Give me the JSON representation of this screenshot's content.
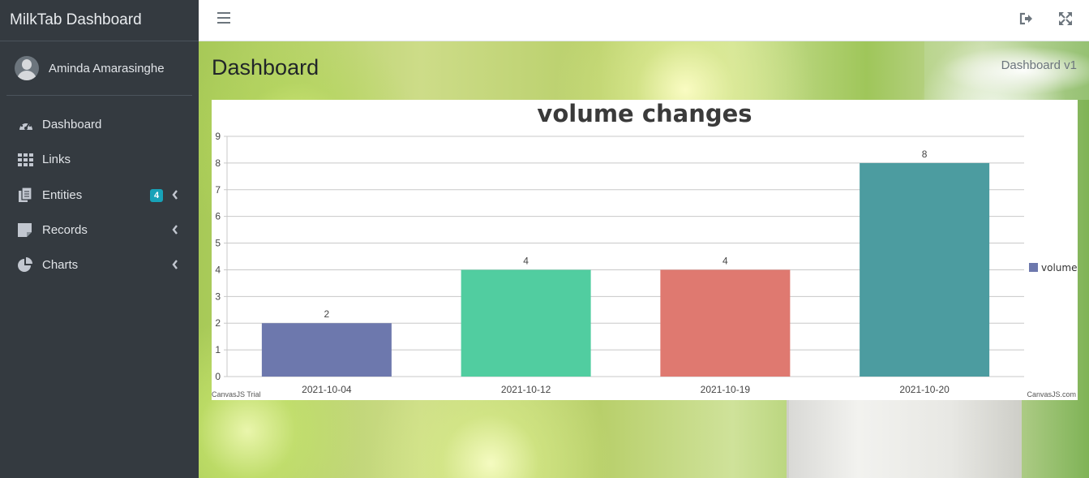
{
  "brand": {
    "title": "MilkTab Dashboard"
  },
  "user": {
    "name": "Aminda Amarasinghe"
  },
  "sidebar": {
    "items": [
      {
        "label": "Dashboard",
        "icon": "dashboard-icon"
      },
      {
        "label": "Links",
        "icon": "grid-icon"
      },
      {
        "label": "Entities",
        "icon": "copy-icon",
        "badge": "4"
      },
      {
        "label": "Records",
        "icon": "sticky-note-icon"
      },
      {
        "label": "Charts",
        "icon": "pie-chart-icon"
      }
    ]
  },
  "header": {
    "page_title": "Dashboard",
    "breadcrumb": "Dashboard v1"
  },
  "colors": {
    "sidebar_bg": "#343a40",
    "badge": "#17a2b8"
  },
  "chart_data": {
    "type": "bar",
    "title": "volume changes",
    "categories": [
      "2021-10-04",
      "2021-10-12",
      "2021-10-19",
      "2021-10-20"
    ],
    "series": [
      {
        "name": "volume",
        "values": [
          2,
          4,
          4,
          8
        ]
      }
    ],
    "bar_colors": [
      "#6d78ad",
      "#51cda0",
      "#df7970",
      "#4c9ca0"
    ],
    "ylim": [
      0,
      9
    ],
    "yticks": [
      0,
      1,
      2,
      3,
      4,
      5,
      6,
      7,
      8,
      9
    ],
    "grid": true,
    "legend": "right",
    "credits": {
      "left": "CanvasJS Trial",
      "right": "CanvasJS.com"
    }
  }
}
